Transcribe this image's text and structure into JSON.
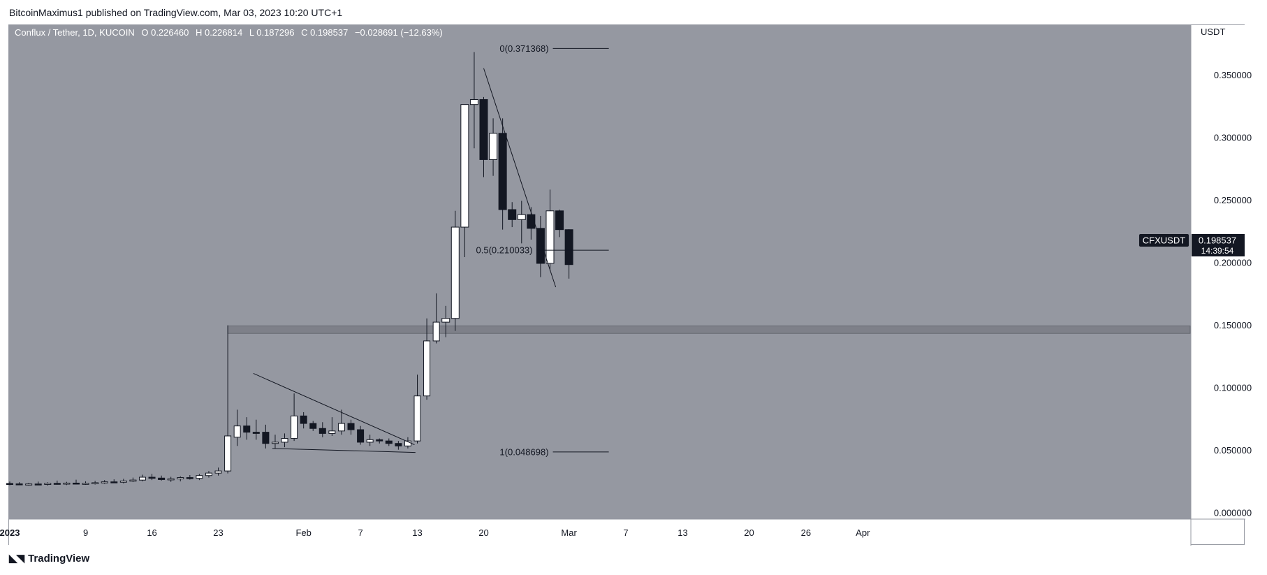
{
  "header": {
    "published": "BitcoinMaximus1 published on TradingView.com, Mar 03, 2023 10:20 UTC+1"
  },
  "footer": {
    "brand": "TradingView",
    "brand_icon": "tradingview-logo-icon"
  },
  "colors": {
    "pane_bg": "#9598a1",
    "axis_bg": "#ffffff",
    "bull": "#ffffff",
    "bear": "#131722",
    "support_band": "#6b6e76",
    "fib_line": "#131722",
    "price_label_bg": "#131722"
  },
  "chart_data": {
    "type": "candlestick",
    "title": "Conflux / Tether, 1D, KUCOIN",
    "ohlc_header": {
      "o_label": "O",
      "o": "0.226460",
      "h_label": "H",
      "h": "0.226814",
      "l_label": "L",
      "l": "0.187296",
      "c_label": "C",
      "c": "0.198537",
      "change": "−0.028691 (−12.63%)"
    },
    "y_axis": {
      "unit": "USDT",
      "range": [
        -0.005,
        0.39
      ],
      "ticks": [
        "0.350000",
        "0.300000",
        "0.250000",
        "0.200000",
        "0.150000",
        "0.100000",
        "0.050000",
        "0.000000"
      ]
    },
    "x_axis": {
      "labels": [
        {
          "day": 0,
          "label": "2023",
          "bold": true
        },
        {
          "day": 8,
          "label": "9"
        },
        {
          "day": 15,
          "label": "16"
        },
        {
          "day": 22,
          "label": "23"
        },
        {
          "day": 31,
          "label": "Feb"
        },
        {
          "day": 37,
          "label": "7"
        },
        {
          "day": 43,
          "label": "13"
        },
        {
          "day": 50,
          "label": "20"
        },
        {
          "day": 59,
          "label": "Mar"
        },
        {
          "day": 65,
          "label": "7"
        },
        {
          "day": 71,
          "label": "13"
        },
        {
          "day": 78,
          "label": "20"
        },
        {
          "day": 84,
          "label": "26"
        },
        {
          "day": 90,
          "label": "Apr"
        }
      ]
    },
    "candles": [
      {
        "o": 0.0235,
        "h": 0.025,
        "l": 0.022,
        "c": 0.0232
      },
      {
        "o": 0.0232,
        "h": 0.0245,
        "l": 0.0222,
        "c": 0.0228
      },
      {
        "o": 0.0228,
        "h": 0.024,
        "l": 0.0218,
        "c": 0.0231
      },
      {
        "o": 0.0231,
        "h": 0.025,
        "l": 0.0222,
        "c": 0.0227
      },
      {
        "o": 0.0227,
        "h": 0.0245,
        "l": 0.0218,
        "c": 0.0236
      },
      {
        "o": 0.0236,
        "h": 0.0258,
        "l": 0.0226,
        "c": 0.0232
      },
      {
        "o": 0.0232,
        "h": 0.0248,
        "l": 0.0222,
        "c": 0.0238
      },
      {
        "o": 0.0238,
        "h": 0.0265,
        "l": 0.0228,
        "c": 0.0233
      },
      {
        "o": 0.0233,
        "h": 0.0252,
        "l": 0.0224,
        "c": 0.0236
      },
      {
        "o": 0.0236,
        "h": 0.0256,
        "l": 0.0226,
        "c": 0.0241
      },
      {
        "o": 0.0241,
        "h": 0.0262,
        "l": 0.0232,
        "c": 0.0248
      },
      {
        "o": 0.0248,
        "h": 0.0268,
        "l": 0.0238,
        "c": 0.0245
      },
      {
        "o": 0.0245,
        "h": 0.0272,
        "l": 0.0236,
        "c": 0.0255
      },
      {
        "o": 0.0255,
        "h": 0.0282,
        "l": 0.0246,
        "c": 0.0262
      },
      {
        "o": 0.0262,
        "h": 0.0305,
        "l": 0.0252,
        "c": 0.0285
      },
      {
        "o": 0.0285,
        "h": 0.0312,
        "l": 0.0262,
        "c": 0.0278
      },
      {
        "o": 0.0278,
        "h": 0.0298,
        "l": 0.0258,
        "c": 0.0266
      },
      {
        "o": 0.0266,
        "h": 0.0288,
        "l": 0.0248,
        "c": 0.0272
      },
      {
        "o": 0.0272,
        "h": 0.0292,
        "l": 0.0252,
        "c": 0.0282
      },
      {
        "o": 0.0282,
        "h": 0.0302,
        "l": 0.0266,
        "c": 0.0276
      },
      {
        "o": 0.0276,
        "h": 0.0312,
        "l": 0.0262,
        "c": 0.0298
      },
      {
        "o": 0.0298,
        "h": 0.0335,
        "l": 0.0282,
        "c": 0.0318
      },
      {
        "o": 0.0318,
        "h": 0.0362,
        "l": 0.0298,
        "c": 0.0335
      },
      {
        "o": 0.0335,
        "h": 0.15,
        "l": 0.0315,
        "c": 0.0615
      },
      {
        "o": 0.0605,
        "h": 0.0825,
        "l": 0.0535,
        "c": 0.0695
      },
      {
        "o": 0.0695,
        "h": 0.0765,
        "l": 0.0585,
        "c": 0.0645
      },
      {
        "o": 0.0645,
        "h": 0.0745,
        "l": 0.0585,
        "c": 0.0635
      },
      {
        "o": 0.0645,
        "h": 0.0705,
        "l": 0.0515,
        "c": 0.0555
      },
      {
        "o": 0.0555,
        "h": 0.0625,
        "l": 0.0515,
        "c": 0.0565
      },
      {
        "o": 0.0565,
        "h": 0.0635,
        "l": 0.0525,
        "c": 0.0595
      },
      {
        "o": 0.0595,
        "h": 0.0955,
        "l": 0.0575,
        "c": 0.0775
      },
      {
        "o": 0.0775,
        "h": 0.0805,
        "l": 0.0675,
        "c": 0.0715
      },
      {
        "o": 0.0715,
        "h": 0.0735,
        "l": 0.0655,
        "c": 0.0675
      },
      {
        "o": 0.0675,
        "h": 0.0725,
        "l": 0.0605,
        "c": 0.0635
      },
      {
        "o": 0.0635,
        "h": 0.0765,
        "l": 0.0615,
        "c": 0.0655
      },
      {
        "o": 0.0655,
        "h": 0.0825,
        "l": 0.0625,
        "c": 0.0715
      },
      {
        "o": 0.0715,
        "h": 0.0745,
        "l": 0.0625,
        "c": 0.0665
      },
      {
        "o": 0.0665,
        "h": 0.0695,
        "l": 0.0545,
        "c": 0.0565
      },
      {
        "o": 0.0565,
        "h": 0.0625,
        "l": 0.0535,
        "c": 0.0585
      },
      {
        "o": 0.0585,
        "h": 0.0595,
        "l": 0.0555,
        "c": 0.0575
      },
      {
        "o": 0.0575,
        "h": 0.0595,
        "l": 0.0535,
        "c": 0.0555
      },
      {
        "o": 0.0555,
        "h": 0.0575,
        "l": 0.0505,
        "c": 0.0535
      },
      {
        "o": 0.0535,
        "h": 0.0605,
        "l": 0.0515,
        "c": 0.0575
      },
      {
        "o": 0.0575,
        "h": 0.1105,
        "l": 0.0555,
        "c": 0.0935
      },
      {
        "o": 0.0935,
        "h": 0.1555,
        "l": 0.0905,
        "c": 0.1375
      },
      {
        "o": 0.1375,
        "h": 0.1755,
        "l": 0.1355,
        "c": 0.1525
      },
      {
        "o": 0.1525,
        "h": 0.1655,
        "l": 0.1405,
        "c": 0.1555
      },
      {
        "o": 0.1555,
        "h": 0.2415,
        "l": 0.1455,
        "c": 0.2285
      },
      {
        "o": 0.2285,
        "h": 0.3255,
        "l": 0.2045,
        "c": 0.3265
      },
      {
        "o": 0.3265,
        "h": 0.3685,
        "l": 0.2915,
        "c": 0.3305
      },
      {
        "o": 0.3305,
        "h": 0.3325,
        "l": 0.2685,
        "c": 0.2825
      },
      {
        "o": 0.2825,
        "h": 0.3155,
        "l": 0.2695,
        "c": 0.3035
      },
      {
        "o": 0.3035,
        "h": 0.3155,
        "l": 0.2265,
        "c": 0.2425
      },
      {
        "o": 0.2425,
        "h": 0.2485,
        "l": 0.2285,
        "c": 0.2345
      },
      {
        "o": 0.2345,
        "h": 0.2495,
        "l": 0.2155,
        "c": 0.2385
      },
      {
        "o": 0.2385,
        "h": 0.2445,
        "l": 0.2185,
        "c": 0.2275
      },
      {
        "o": 0.2275,
        "h": 0.2375,
        "l": 0.1885,
        "c": 0.1995
      },
      {
        "o": 0.1995,
        "h": 0.2585,
        "l": 0.1935,
        "c": 0.2415
      },
      {
        "o": 0.2415,
        "h": 0.2425,
        "l": 0.2205,
        "c": 0.2265
      },
      {
        "o": 0.22646,
        "h": 0.226814,
        "l": 0.187296,
        "c": 0.198537
      }
    ],
    "support_band": {
      "from": 0.1435,
      "to": 0.1495
    },
    "trendlines": [
      {
        "x1": 25.7,
        "y1": 0.1115,
        "x2": 42.7,
        "y2": 0.0545
      },
      {
        "x1": 27.7,
        "y1": 0.0515,
        "x2": 42.8,
        "y2": 0.0483
      },
      {
        "x1": 50.0,
        "y1": 0.3555,
        "x2": 57.6,
        "y2": 0.1805
      }
    ],
    "fib_levels": [
      {
        "level": "0",
        "value": 0.371368,
        "label": "0(0.371368)",
        "x_from": 57.3,
        "x_to": 63.2
      },
      {
        "level": "0.5",
        "value": 0.210033,
        "label": "0.5(0.210033)",
        "x_from": 55.6,
        "x_to": 63.2
      },
      {
        "level": "1",
        "value": 0.048698,
        "label": "1(0.048698)",
        "x_from": 57.3,
        "x_to": 63.2
      }
    ],
    "price_label": {
      "symbol": "CFXUSDT",
      "price": "0.198537",
      "countdown": "14:39:54"
    }
  }
}
